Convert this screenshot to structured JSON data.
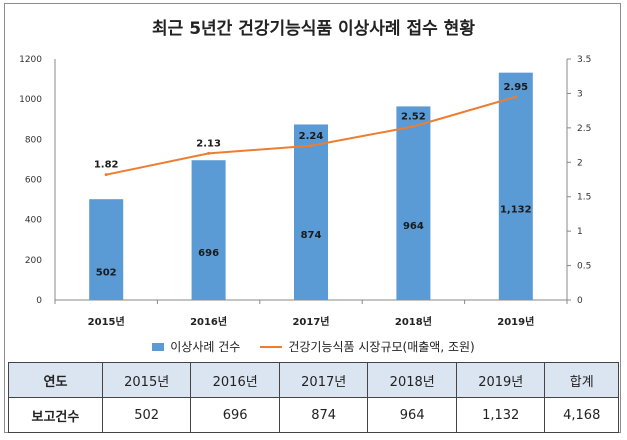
{
  "chart_data": {
    "type": "bar",
    "title": "최근 5년간 건강기능식품 이상사례 접수 현황",
    "categories": [
      "2015년",
      "2016년",
      "2017년",
      "2018년",
      "2019년"
    ],
    "series": [
      {
        "name": "이상사례 건수",
        "type": "bar",
        "axis": "left",
        "color": "#5b9bd5",
        "values": [
          502,
          696,
          874,
          964,
          1132
        ],
        "labels": [
          "502",
          "696",
          "874",
          "964",
          "1,132"
        ]
      },
      {
        "name": "건강기능식품 시장규모(매출액, 조원)",
        "type": "line",
        "axis": "right",
        "color": "#ed7d31",
        "values": [
          1.82,
          2.13,
          2.24,
          2.52,
          2.95
        ],
        "labels": [
          "1.82",
          "2.13",
          "2.24",
          "2.52",
          "2.95"
        ]
      }
    ],
    "y_left": {
      "min": 0,
      "max": 1200,
      "ticks": [
        "0",
        "200",
        "400",
        "600",
        "800",
        "1000",
        "1200"
      ]
    },
    "y_right": {
      "min": 0,
      "max": 3.5,
      "ticks": [
        "0",
        "0.5",
        "1",
        "1.5",
        "2",
        "2.5",
        "3",
        "3.5"
      ]
    },
    "grid": false,
    "legend": "bottom"
  },
  "table": {
    "header": [
      "연도",
      "2015년",
      "2016년",
      "2017년",
      "2018년",
      "2019년",
      "합계"
    ],
    "rows": [
      [
        "보고건수",
        "502",
        "696",
        "874",
        "964",
        "1,132",
        "4,168"
      ]
    ]
  }
}
